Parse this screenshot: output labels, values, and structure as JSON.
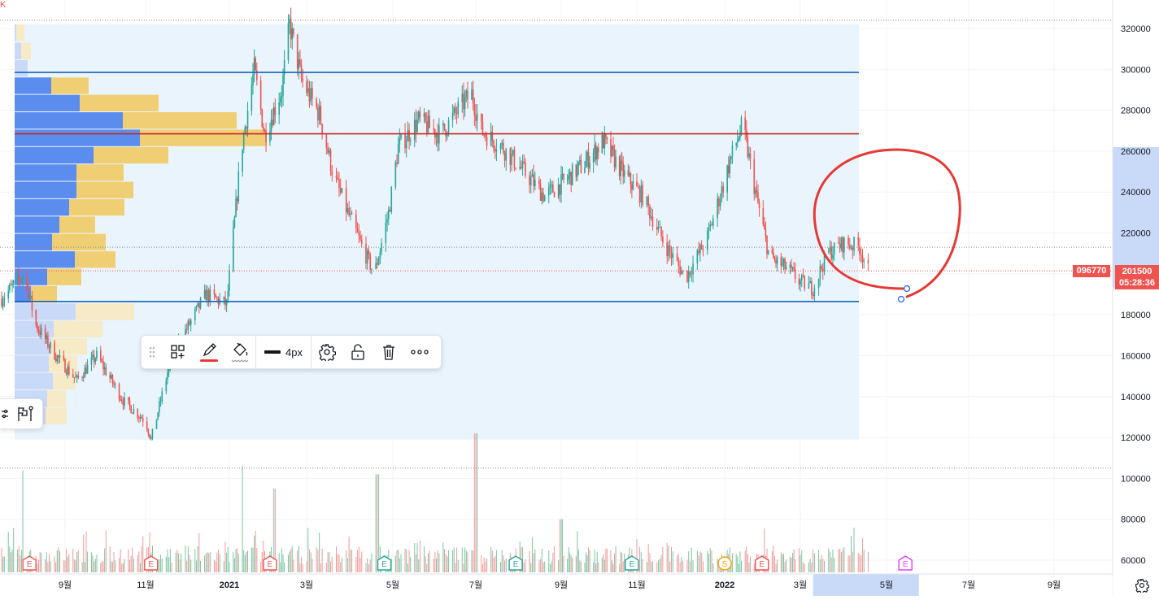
{
  "chart_data": {
    "type": "candlestick",
    "title": "",
    "y_axis": {
      "ticks": [
        320000,
        300000,
        280000,
        260000,
        240000,
        220000,
        200000,
        180000,
        160000,
        140000,
        120000,
        100000,
        80000,
        60000
      ],
      "tick_labels": [
        "320000",
        "300000",
        "280000",
        "260000",
        "240000",
        "220000",
        "",
        "180000",
        "160000",
        "140000",
        "120000",
        "100000",
        "80000",
        "60000"
      ],
      "range": [
        54000,
        328000
      ]
    },
    "x_axis": {
      "tick_labels": [
        "9월",
        "11월",
        "2021",
        "3월",
        "5월",
        "7월",
        "9월",
        "11월",
        "2022",
        "3월",
        "5월",
        "7월",
        "9월"
      ],
      "range_highlight": [
        "2022-03-10",
        "2022-05-25"
      ]
    },
    "price_path": [
      {
        "t": "2020-07-15",
        "p": 188000
      },
      {
        "t": "2020-08-01",
        "p": 200000
      },
      {
        "t": "2020-08-10",
        "p": 175000
      },
      {
        "t": "2020-08-25",
        "p": 160000
      },
      {
        "t": "2020-09-10",
        "p": 148000
      },
      {
        "t": "2020-09-25",
        "p": 160000
      },
      {
        "t": "2020-10-15",
        "p": 138000
      },
      {
        "t": "2020-11-01",
        "p": 128000
      },
      {
        "t": "2020-11-05",
        "p": 119000
      },
      {
        "t": "2020-11-20",
        "p": 160000
      },
      {
        "t": "2020-12-05",
        "p": 178000
      },
      {
        "t": "2020-12-15",
        "p": 190000
      },
      {
        "t": "2020-12-30",
        "p": 185000
      },
      {
        "t": "2021-01-10",
        "p": 260000
      },
      {
        "t": "2021-01-20",
        "p": 300000
      },
      {
        "t": "2021-01-28",
        "p": 268000
      },
      {
        "t": "2021-02-10",
        "p": 290000
      },
      {
        "t": "2021-02-16",
        "p": 322000
      },
      {
        "t": "2021-02-25",
        "p": 295000
      },
      {
        "t": "2021-03-10",
        "p": 278000
      },
      {
        "t": "2021-03-20",
        "p": 248000
      },
      {
        "t": "2021-03-30",
        "p": 230000
      },
      {
        "t": "2021-04-10",
        "p": 212000
      },
      {
        "t": "2021-04-18",
        "p": 200000
      },
      {
        "t": "2021-04-28",
        "p": 230000
      },
      {
        "t": "2021-05-05",
        "p": 262000
      },
      {
        "t": "2021-05-20",
        "p": 275000
      },
      {
        "t": "2021-06-05",
        "p": 268000
      },
      {
        "t": "2021-06-20",
        "p": 282000
      },
      {
        "t": "2021-06-28",
        "p": 288000
      },
      {
        "t": "2021-07-05",
        "p": 270000
      },
      {
        "t": "2021-07-20",
        "p": 262000
      },
      {
        "t": "2021-08-05",
        "p": 250000
      },
      {
        "t": "2021-08-20",
        "p": 238000
      },
      {
        "t": "2021-09-05",
        "p": 246000
      },
      {
        "t": "2021-09-20",
        "p": 254000
      },
      {
        "t": "2021-10-05",
        "p": 265000
      },
      {
        "t": "2021-10-20",
        "p": 250000
      },
      {
        "t": "2021-11-05",
        "p": 238000
      },
      {
        "t": "2021-11-20",
        "p": 215000
      },
      {
        "t": "2021-12-05",
        "p": 198000
      },
      {
        "t": "2021-12-20",
        "p": 218000
      },
      {
        "t": "2022-01-05",
        "p": 255000
      },
      {
        "t": "2022-01-15",
        "p": 273000
      },
      {
        "t": "2022-01-25",
        "p": 240000
      },
      {
        "t": "2022-02-05",
        "p": 208000
      },
      {
        "t": "2022-02-20",
        "p": 202000
      },
      {
        "t": "2022-03-01",
        "p": 196000
      },
      {
        "t": "2022-03-10",
        "p": 193000
      },
      {
        "t": "2022-03-20",
        "p": 210000
      },
      {
        "t": "2022-04-01",
        "p": 215000
      },
      {
        "t": "2022-04-12",
        "p": 213000
      },
      {
        "t": "2022-04-18",
        "p": 201500
      }
    ],
    "volume_peaks": [
      {
        "t": "2020-08-01",
        "v": 104000
      },
      {
        "t": "2021-01-10",
        "v": 106000
      },
      {
        "t": "2021-02-05",
        "v": 95000
      },
      {
        "t": "2021-04-20",
        "v": 102000
      },
      {
        "t": "2021-07-01",
        "v": 122000
      },
      {
        "t": "2021-09-01",
        "v": 80000
      }
    ],
    "horizontal_levels": [
      {
        "name": "upper-range",
        "price": 298500,
        "color": "#1565c0"
      },
      {
        "name": "resistance",
        "price": 268500,
        "color": "#c62828"
      },
      {
        "name": "lower-range",
        "price": 186500,
        "color": "#1565c0"
      }
    ],
    "dotted_levels": [
      {
        "price": 324000,
        "color": "#888888"
      },
      {
        "price": 213000,
        "color": "#888888"
      },
      {
        "price": 201500,
        "color": "#ef5350"
      },
      {
        "price": 105000,
        "color": "#888888"
      }
    ],
    "volume_profile": [
      {
        "price": 318000,
        "up": 2,
        "down": 10
      },
      {
        "price": 309000,
        "up": 8,
        "down": 12
      },
      {
        "price": 300500,
        "up": 16,
        "down": 0
      },
      {
        "price": 292000,
        "up": 45,
        "down": 46
      },
      {
        "price": 283500,
        "up": 80,
        "down": 97
      },
      {
        "price": 275000,
        "up": 133,
        "down": 140
      },
      {
        "price": 266500,
        "up": 154,
        "down": 156
      },
      {
        "price": 258000,
        "up": 97,
        "down": 92
      },
      {
        "price": 249500,
        "up": 76,
        "down": 58
      },
      {
        "price": 241000,
        "up": 76,
        "down": 70
      },
      {
        "price": 232500,
        "up": 67,
        "down": 68
      },
      {
        "price": 224000,
        "up": 55,
        "down": 44
      },
      {
        "price": 215500,
        "up": 46,
        "down": 66
      },
      {
        "price": 207000,
        "up": 74,
        "down": 50
      },
      {
        "price": 198500,
        "up": 40,
        "down": 42
      },
      {
        "price": 190000,
        "up": 20,
        "down": 32
      },
      {
        "price": 181500,
        "up": 75,
        "down": 72
      },
      {
        "price": 173000,
        "up": 48,
        "down": 60
      },
      {
        "price": 164500,
        "up": 45,
        "down": 44
      },
      {
        "price": 156000,
        "up": 42,
        "down": 35
      },
      {
        "price": 147500,
        "up": 47,
        "down": 28
      },
      {
        "price": 139000,
        "up": 40,
        "down": 23
      },
      {
        "price": 130500,
        "up": 38,
        "down": 26
      }
    ],
    "events": [
      {
        "t": "2020-08-05",
        "type": "E",
        "color": "#ef5350"
      },
      {
        "t": "2020-11-05",
        "type": "E",
        "color": "#ef5350"
      },
      {
        "t": "2021-02-01",
        "type": "E",
        "color": "#ef5350"
      },
      {
        "t": "2021-04-25",
        "type": "E",
        "color": "#26a69a"
      },
      {
        "t": "2021-07-30",
        "type": "E",
        "color": "#26a69a"
      },
      {
        "t": "2021-10-28",
        "type": "E",
        "color": "#26a69a"
      },
      {
        "t": "2022-01-01",
        "type": "S",
        "color": "#ff9800"
      },
      {
        "t": "2022-01-30",
        "type": "E",
        "color": "#ef5350"
      },
      {
        "t": "2022-05-15",
        "type": "E",
        "color": "#e040fb"
      }
    ]
  },
  "price_label": {
    "symbol": "096770",
    "price": "201500",
    "countdown": "05:28:36"
  },
  "corner_label": "K",
  "drawing_toolbar": {
    "width_label": "4px",
    "icons": [
      "drag-handle-icon",
      "templates-icon",
      "pencil-icon",
      "fill-icon",
      "line-width-icon",
      "gear-icon",
      "unlock-icon",
      "trash-icon",
      "more-icon"
    ]
  },
  "left_toolbar": {
    "icons": [
      "settings-sliders-icon",
      "flag-icon"
    ]
  },
  "colors": {
    "up": "#26a69a",
    "down": "#ef5350",
    "vp_up": "#5b8def",
    "vp_down": "#f0cf74",
    "range_fill": "#eaf4fc",
    "annotation": "#e53935",
    "axis_highlight": "#c9daf8"
  }
}
